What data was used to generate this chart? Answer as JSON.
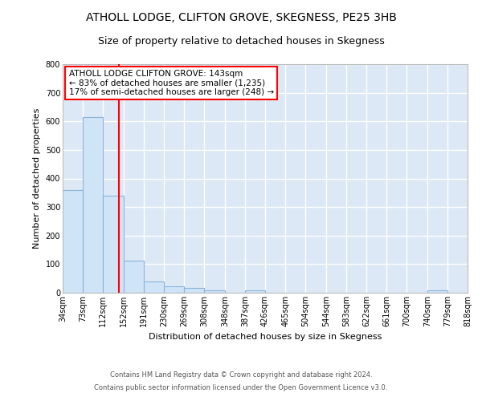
{
  "title1": "ATHOLL LODGE, CLIFTON GROVE, SKEGNESS, PE25 3HB",
  "title2": "Size of property relative to detached houses in Skegness",
  "xlabel": "Distribution of detached houses by size in Skegness",
  "ylabel": "Number of detached properties",
  "bin_edges": [
    34,
    73,
    112,
    152,
    191,
    230,
    269,
    308,
    348,
    387,
    426,
    465,
    504,
    544,
    583,
    622,
    661,
    700,
    740,
    779,
    818
  ],
  "bar_heights": [
    358,
    614,
    340,
    113,
    40,
    22,
    18,
    9,
    0,
    8,
    0,
    0,
    0,
    0,
    0,
    0,
    0,
    0,
    8,
    0
  ],
  "bar_color": "#d0e4f7",
  "bar_edge_color": "#8ab4d8",
  "red_line_x": 143,
  "annotation_line1": "ATHOLL LODGE CLIFTON GROVE: 143sqm",
  "annotation_line2": "← 83% of detached houses are smaller (1,235)",
  "annotation_line3": "17% of semi-detached houses are larger (248) →",
  "annotation_box_color": "white",
  "annotation_border_color": "red",
  "ylim": [
    0,
    800
  ],
  "yticks": [
    0,
    100,
    200,
    300,
    400,
    500,
    600,
    700,
    800
  ],
  "footer1": "Contains HM Land Registry data © Crown copyright and database right 2024.",
  "footer2": "Contains public sector information licensed under the Open Government Licence v3.0.",
  "background_color": "#dce8f5",
  "grid_color": "#ffffff",
  "title1_fontsize": 10,
  "title2_fontsize": 9,
  "axis_label_fontsize": 8,
  "tick_fontsize": 7,
  "annotation_fontsize": 7.5,
  "footer_fontsize": 6
}
